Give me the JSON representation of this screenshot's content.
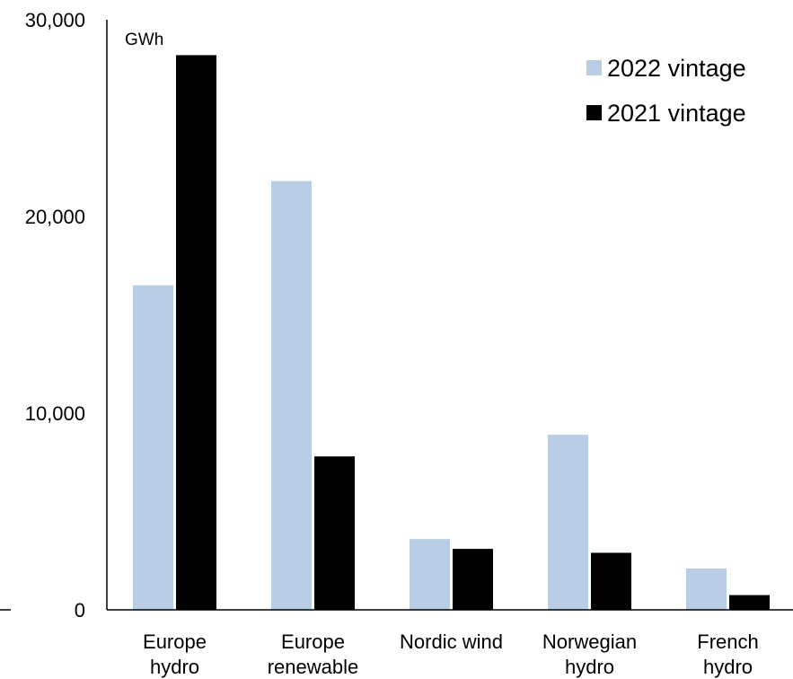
{
  "chart_data": {
    "type": "bar",
    "title": "",
    "unit_label": "GWh",
    "categories": [
      [
        "Europe",
        "hydro"
      ],
      [
        "Europe",
        "renewable"
      ],
      [
        "Nordic wind"
      ],
      [
        "Norwegian",
        "hydro"
      ],
      [
        "French",
        "hydro"
      ]
    ],
    "series": [
      {
        "name": "2022 vintage",
        "color": "#b9cde5",
        "values": [
          16500,
          21800,
          3600,
          8900,
          2100
        ]
      },
      {
        "name": "2021 vintage",
        "color": "#000000",
        "values": [
          28200,
          7800,
          3100,
          2900,
          750
        ]
      }
    ],
    "yticks": [
      0,
      10000,
      20000,
      30000
    ],
    "ytick_labels": [
      "0",
      "10,000",
      "20,000",
      "30,000"
    ],
    "ylim": [
      0,
      30000
    ],
    "grid": false,
    "legend_position": "top-right"
  }
}
